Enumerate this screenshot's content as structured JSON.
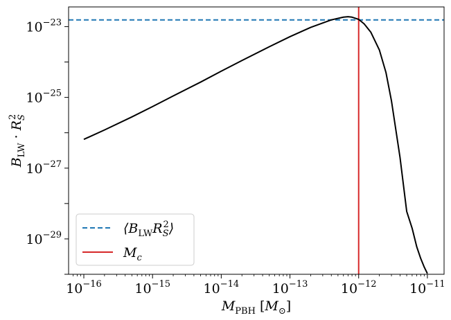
{
  "chart_data": {
    "type": "line",
    "title": "",
    "xlabel": "M_PBH [M_⊙]",
    "ylabel": "B_LW · R_S^2",
    "xscale": "log",
    "yscale": "log",
    "xlim": [
      6e-17,
      1.75e-11
    ],
    "ylim": [
      1e-30,
      3.6e-23
    ],
    "x_ticks": [
      {
        "base": "10",
        "exp": "−16",
        "value": 1e-16
      },
      {
        "base": "10",
        "exp": "−15",
        "value": 1e-15
      },
      {
        "base": "10",
        "exp": "−14",
        "value": 1e-14
      },
      {
        "base": "10",
        "exp": "−13",
        "value": 1e-13
      },
      {
        "base": "10",
        "exp": "−12",
        "value": 1e-12
      },
      {
        "base": "10",
        "exp": "−11",
        "value": 1e-11
      }
    ],
    "y_ticks": [
      {
        "base": "10",
        "exp": "−23",
        "value": 1e-23
      },
      {
        "base": "10",
        "exp": "−25",
        "value": 1e-25
      },
      {
        "base": "10",
        "exp": "−27",
        "value": 1e-27
      },
      {
        "base": "10",
        "exp": "−29",
        "value": 1e-29
      }
    ],
    "series": [
      {
        "color": "#000000",
        "style": "solid",
        "x": [
          1e-16,
          2e-16,
          5e-16,
          1e-15,
          2e-15,
          5e-15,
          1e-14,
          2e-14,
          5e-14,
          1e-13,
          2e-13,
          4e-13,
          6e-13,
          7e-13,
          8e-13,
          1e-12,
          1.2e-12,
          1.5e-12,
          2e-12,
          2.5e-12,
          3e-12,
          4e-12,
          5e-12,
          6e-12,
          7e-12,
          8e-12,
          9e-12,
          1e-11
        ],
        "y": [
          6.5e-27,
          1.2e-26,
          2.8e-26,
          5.5e-26,
          1.1e-25,
          2.7e-25,
          5.5e-25,
          1.1e-24,
          2.7e-24,
          5.2e-24,
          9.5e-24,
          1.55e-23,
          1.85e-23,
          1.9e-23,
          1.85e-23,
          1.6e-23,
          1.2e-23,
          7e-24,
          2.2e-24,
          5e-25,
          8e-26,
          2e-27,
          6e-29,
          2e-29,
          6e-30,
          2.8e-30,
          1.6e-30,
          1.05e-30
        ]
      }
    ],
    "hlines": [
      {
        "name": "⟨B_LW R_S^2⟩",
        "y": 1.55e-23,
        "color": "#1f77b4",
        "style": "dashed"
      }
    ],
    "vlines": [
      {
        "name": "M_c",
        "x": 1e-12,
        "color": "#d62728",
        "style": "solid"
      }
    ],
    "legend": {
      "placement": "lower-left",
      "entries": [
        {
          "label": "⟨B_LW R_S^2⟩",
          "color": "#1f77b4",
          "style": "dashed"
        },
        {
          "label": "M_c",
          "color": "#d62728",
          "style": "solid"
        }
      ]
    },
    "grid": false
  }
}
